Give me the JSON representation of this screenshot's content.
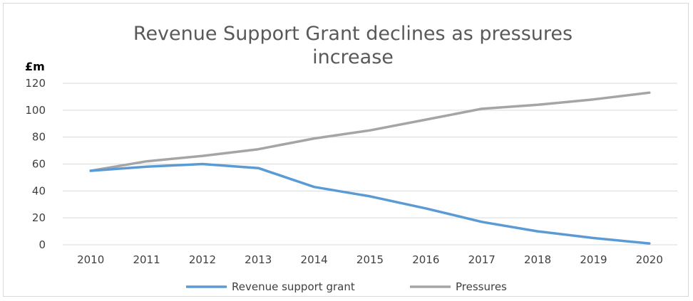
{
  "chart_data": {
    "type": "line",
    "title": "Revenue Support Grant declines as pressures increase",
    "title_lines": [
      "Revenue Support Grant declines as pressures",
      "increase"
    ],
    "y_unit_label": "£m",
    "xlabel": "",
    "ylabel": "",
    "categories": [
      "2010",
      "2011",
      "2012",
      "2013",
      "2014",
      "2015",
      "2016",
      "2017",
      "2018",
      "2019",
      "2020"
    ],
    "ylim": [
      0,
      120
    ],
    "yticks": [
      0,
      20,
      40,
      60,
      80,
      100,
      120
    ],
    "grid": true,
    "legend_position": "bottom",
    "series": [
      {
        "name": "Revenue support grant",
        "color": "#5b9bd5",
        "values": [
          55,
          58,
          60,
          57,
          43,
          36,
          27,
          17,
          10,
          5,
          1
        ]
      },
      {
        "name": "Pressures",
        "color": "#a5a5a5",
        "values": [
          55,
          62,
          66,
          71,
          79,
          85,
          93,
          101,
          104,
          108,
          113
        ]
      }
    ]
  }
}
